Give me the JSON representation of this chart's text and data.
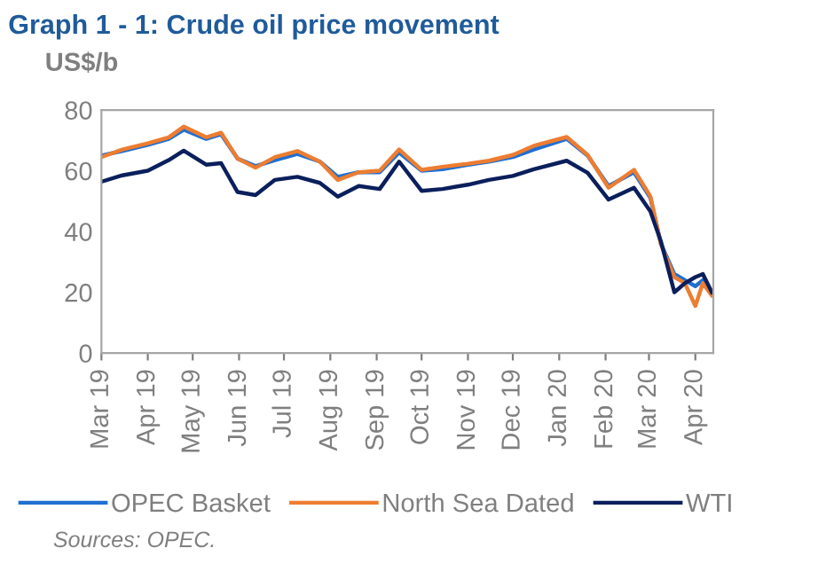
{
  "chart_data": {
    "type": "line",
    "title": "Graph 1 - 1: Crude oil price movement",
    "ylabel": "US$/b",
    "x": [
      "2019-03-01",
      "2019-03-15",
      "2019-04-01",
      "2019-04-15",
      "2019-04-25",
      "2019-05-10",
      "2019-05-20",
      "2019-05-31",
      "2019-06-12",
      "2019-06-25",
      "2019-07-10",
      "2019-07-25",
      "2019-08-06",
      "2019-08-20",
      "2019-09-03",
      "2019-09-16",
      "2019-10-01",
      "2019-10-15",
      "2019-11-01",
      "2019-11-15",
      "2019-12-01",
      "2019-12-15",
      "2020-01-06",
      "2020-01-20",
      "2020-02-03",
      "2020-02-20",
      "2020-03-02",
      "2020-03-09",
      "2020-03-18",
      "2020-03-25",
      "2020-04-01",
      "2020-04-06",
      "2020-04-12"
    ],
    "series": [
      {
        "name": "OPEC Basket",
        "color": "#1f6fd1",
        "values": [
          65,
          66.5,
          68.5,
          70.5,
          73.5,
          70.5,
          72,
          64,
          61.5,
          63.5,
          65.5,
          63,
          58,
          59.5,
          59.5,
          66,
          60,
          60.5,
          62,
          63,
          64.5,
          67,
          70.5,
          65,
          55,
          59.5,
          51,
          36,
          26,
          24,
          22,
          24,
          20
        ]
      },
      {
        "name": "North Sea Dated",
        "color": "#ed7d31",
        "values": [
          64.5,
          67,
          69,
          71,
          74.5,
          71,
          72.5,
          64,
          61,
          64.5,
          66.5,
          63,
          57,
          59.5,
          60,
          67,
          60.3,
          61.3,
          62.3,
          63.3,
          65.2,
          68.2,
          71.1,
          65.2,
          54.4,
          60.3,
          51.5,
          35.8,
          25,
          23,
          15.5,
          23,
          19
        ]
      },
      {
        "name": "WTI",
        "color": "#0a1f5c",
        "values": [
          56.4,
          58.5,
          60,
          63.5,
          66.6,
          62,
          62.5,
          53,
          52,
          57,
          58,
          56,
          51.5,
          55,
          54,
          63,
          53.4,
          54,
          55.4,
          57,
          58.3,
          60.5,
          63.3,
          59.3,
          50.5,
          54.4,
          46.6,
          36.7,
          20,
          23,
          25,
          26,
          20
        ]
      }
    ],
    "xlim": [
      "2019-03-01",
      "2020-04-13"
    ],
    "xticks": [
      {
        "value": "2019-03-01",
        "label": "Mar 19"
      },
      {
        "value": "2019-04-01",
        "label": "Apr 19"
      },
      {
        "value": "2019-05-01",
        "label": "May 19"
      },
      {
        "value": "2019-06-01",
        "label": "Jun 19"
      },
      {
        "value": "2019-07-01",
        "label": "Jul 19"
      },
      {
        "value": "2019-08-01",
        "label": "Aug 19"
      },
      {
        "value": "2019-09-01",
        "label": "Sep 19"
      },
      {
        "value": "2019-10-01",
        "label": "Oct 19"
      },
      {
        "value": "2019-11-01",
        "label": "Nov 19"
      },
      {
        "value": "2019-12-01",
        "label": "Dec 19"
      },
      {
        "value": "2020-01-01",
        "label": "Jan 20"
      },
      {
        "value": "2020-02-01",
        "label": "Feb 20"
      },
      {
        "value": "2020-03-01",
        "label": "Mar 20"
      },
      {
        "value": "2020-04-01",
        "label": "Apr 20"
      }
    ],
    "ylim": [
      0,
      80
    ],
    "yticks": [
      0,
      20,
      40,
      60,
      80
    ],
    "grid": false,
    "legend": "bottom",
    "marker": "none",
    "line_style": "solid",
    "annotations": [
      "Sources: OPEC."
    ]
  }
}
